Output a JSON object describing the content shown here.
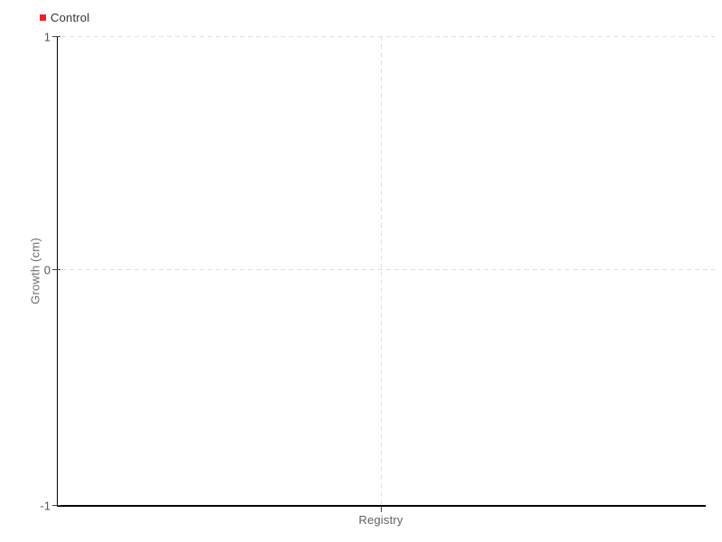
{
  "chart_data": {
    "type": "bar",
    "title": "",
    "categories": [
      "Registry"
    ],
    "series": [
      {
        "name": "Control",
        "color": "#f81b2d",
        "values": [
          null
        ]
      }
    ],
    "xlabel": "",
    "ylabel": "Growth (cm)",
    "ylim": [
      -1,
      1
    ],
    "yticks": [
      1,
      0,
      -1
    ],
    "xticks": [
      "Registry"
    ],
    "grid": "dashed, horizontal at y=1 and y=0, vertical at category center",
    "legend_position": "top-left",
    "plot_background": "#ffffff",
    "notes": "no bars rendered (empty/zero data)"
  },
  "legend": {
    "items": [
      {
        "label": "Control",
        "color": "#f81b2d"
      }
    ]
  },
  "y_axis": {
    "label": "Growth (cm)",
    "ticks": [
      "1",
      "0",
      "-1"
    ]
  },
  "x_axis": {
    "ticks": [
      "Registry"
    ]
  },
  "colors": {
    "axis_line": "#000000",
    "gridline": "#dddddd",
    "tick_text": "#555555",
    "axis_label_text": "#6e6e6e",
    "legend_text": "#333333",
    "series_control": "#f81b2d",
    "background": "#ffffff"
  }
}
